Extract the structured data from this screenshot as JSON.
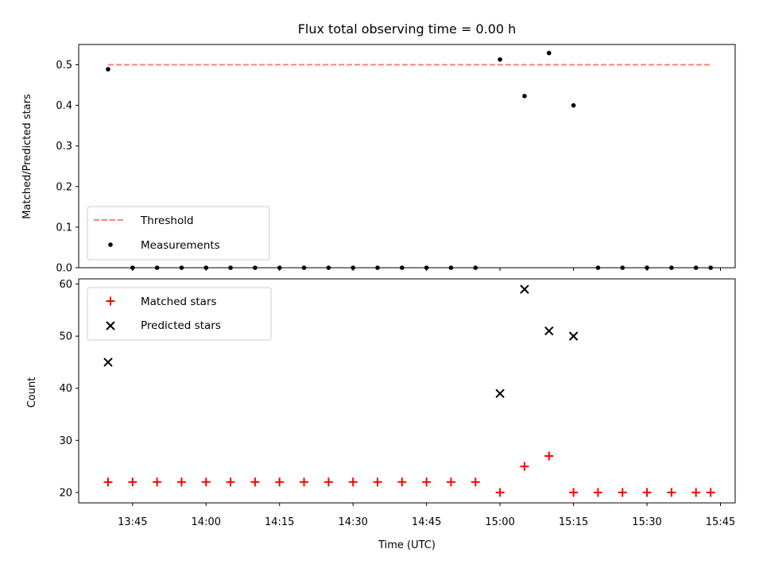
{
  "chart_data": [
    {
      "type": "scatter",
      "title": "Flux total observing time = 0.00 h",
      "xlabel": "",
      "ylabel": "Matched/Predicted stars",
      "xlim": [
        "13:34",
        "15:48"
      ],
      "ylim": [
        0,
        0.55
      ],
      "yticks": [
        0.0,
        0.1,
        0.2,
        0.3,
        0.4,
        0.5
      ],
      "ytick_labels": [
        "0.0",
        "0.1",
        "0.2",
        "0.3",
        "0.4",
        "0.5"
      ],
      "grid": false,
      "legend": "lower-left",
      "threshold": {
        "name": "Threshold",
        "value": 0.5,
        "x_start": "13:40",
        "x_end": "15:43",
        "color": "#ff7f7f",
        "style": "dashed"
      },
      "series": [
        {
          "name": "Measurements",
          "marker": "dot",
          "color": "#000000",
          "x": [
            "13:40",
            "13:45",
            "13:50",
            "13:55",
            "14:00",
            "14:05",
            "14:10",
            "14:15",
            "14:20",
            "14:25",
            "14:30",
            "14:35",
            "14:40",
            "14:45",
            "14:50",
            "14:55",
            "15:00",
            "15:05",
            "15:10",
            "15:15",
            "15:20",
            "15:25",
            "15:30",
            "15:35",
            "15:40",
            "15:43"
          ],
          "values": [
            0.489,
            0.0,
            0.0,
            0.0,
            0.0,
            0.0,
            0.0,
            0.0,
            0.0,
            0.0,
            0.0,
            0.0,
            0.0,
            0.0,
            0.0,
            0.0,
            0.513,
            0.423,
            0.529,
            0.4,
            0.0,
            0.0,
            0.0,
            0.0,
            0.0,
            0.0
          ]
        }
      ]
    },
    {
      "type": "scatter",
      "title": "",
      "xlabel": "Time (UTC)",
      "ylabel": "Count",
      "xlim": [
        "13:34",
        "15:48"
      ],
      "ylim": [
        18,
        61
      ],
      "xticks": [
        "13:45",
        "14:00",
        "14:15",
        "14:30",
        "14:45",
        "15:00",
        "15:15",
        "15:30",
        "15:45"
      ],
      "yticks": [
        20,
        30,
        40,
        50,
        60
      ],
      "ytick_labels": [
        "20",
        "30",
        "40",
        "50",
        "60"
      ],
      "grid": false,
      "legend": "top-left",
      "series": [
        {
          "name": "Matched stars",
          "marker": "plus",
          "color": "#ff0000",
          "x": [
            "13:40",
            "13:45",
            "13:50",
            "13:55",
            "14:00",
            "14:05",
            "14:10",
            "14:15",
            "14:20",
            "14:25",
            "14:30",
            "14:35",
            "14:40",
            "14:45",
            "14:50",
            "14:55",
            "15:00",
            "15:05",
            "15:10",
            "15:15",
            "15:20",
            "15:25",
            "15:30",
            "15:35",
            "15:40",
            "15:43"
          ],
          "values": [
            22,
            22,
            22,
            22,
            22,
            22,
            22,
            22,
            22,
            22,
            22,
            22,
            22,
            22,
            22,
            22,
            20,
            25,
            27,
            20,
            20,
            20,
            20,
            20,
            20,
            20
          ]
        },
        {
          "name": "Predicted stars",
          "marker": "x",
          "color": "#000000",
          "x": [
            "13:40",
            "15:00",
            "15:05",
            "15:10",
            "15:15"
          ],
          "values": [
            45,
            39,
            59,
            51,
            50
          ]
        }
      ]
    }
  ]
}
